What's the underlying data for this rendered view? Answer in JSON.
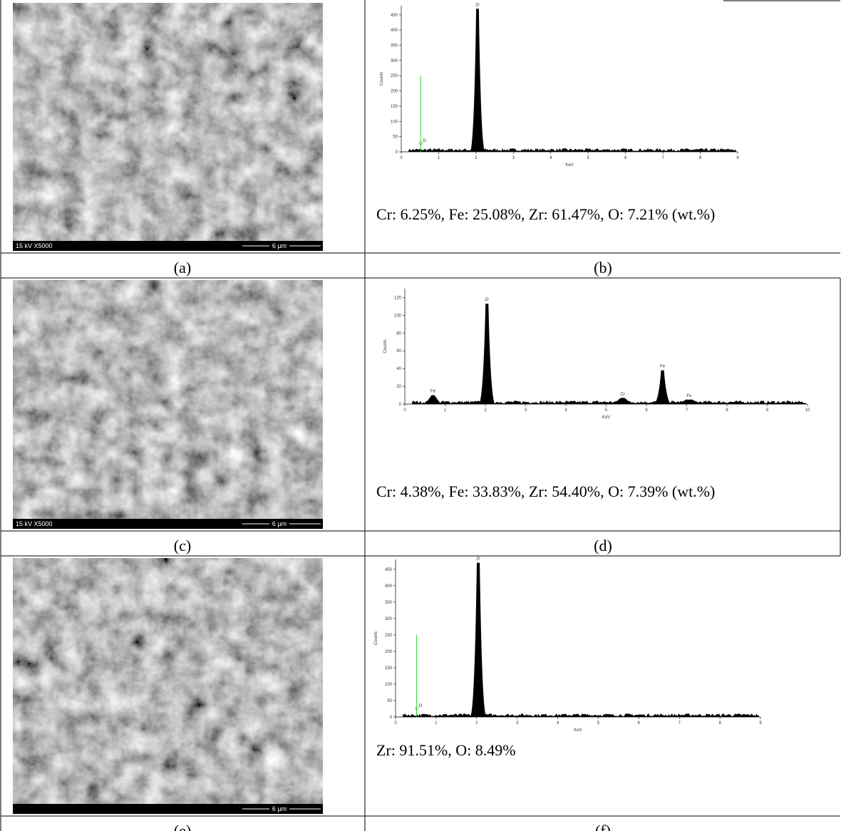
{
  "rows": [
    {
      "sem": {
        "info": "15 kV X5000",
        "scale": "6 µm"
      },
      "sem_caption": "(a)",
      "eds": {
        "y_label": "Counts",
        "x_label": "KeV",
        "xlim": [
          0,
          9
        ],
        "ylim": [
          0,
          480
        ],
        "xticks": [
          0,
          1,
          2,
          3,
          4,
          5,
          6,
          7,
          8,
          9
        ],
        "yticks": [
          0,
          50,
          100,
          150,
          200,
          250,
          300,
          350,
          400,
          450
        ],
        "peaks": [
          {
            "label": "Zr",
            "energy": 2.04,
            "counts": 470
          }
        ],
        "markers": [
          {
            "label": "O",
            "energy": 0.52,
            "counts": 250
          }
        ]
      },
      "composition": "Cr: 6.25%, Fe: 25.08%, Zr: 61.47%, O: 7.21% (wt.%)",
      "eds_caption": "(b)"
    },
    {
      "sem": {
        "info": "15 kV X5000",
        "scale": "6 µm"
      },
      "sem_caption": "(c)",
      "eds": {
        "y_label": "Counts",
        "x_label": "KeV",
        "xlim": [
          0,
          10
        ],
        "ylim": [
          0,
          130
        ],
        "xticks": [
          0,
          1,
          2,
          3,
          4,
          5,
          6,
          7,
          8,
          9,
          10
        ],
        "yticks": [
          0,
          20,
          40,
          60,
          80,
          100,
          120
        ],
        "peaks": [
          {
            "label": "Fe",
            "energy": 0.7,
            "counts": 10
          },
          {
            "label": "Zr",
            "energy": 2.04,
            "counts": 113
          },
          {
            "label": "Cr",
            "energy": 5.41,
            "counts": 7
          },
          {
            "label": "Fe",
            "energy": 6.4,
            "counts": 38
          },
          {
            "label": "Fe",
            "energy": 7.06,
            "counts": 5
          }
        ],
        "markers": []
      },
      "composition": "Cr: 4.38%, Fe: 33.83%, Zr: 54.40%, O: 7.39% (wt.%)",
      "eds_caption": "(d)"
    },
    {
      "sem": {
        "info": null,
        "scale": "6 µm"
      },
      "sem_caption": "(e)",
      "eds": {
        "y_label": "Counts",
        "x_label": "KeV",
        "xlim": [
          0,
          9
        ],
        "ylim": [
          0,
          480
        ],
        "xticks": [
          0,
          1,
          2,
          3,
          4,
          5,
          6,
          7,
          8,
          9
        ],
        "yticks": [
          0,
          50,
          100,
          150,
          200,
          250,
          300,
          350,
          400,
          450
        ],
        "peaks": [
          {
            "label": "Zr",
            "energy": 2.04,
            "counts": 470
          }
        ],
        "markers": [
          {
            "label": "O",
            "energy": 0.52,
            "counts": 250
          }
        ]
      },
      "composition": "Zr: 91.51%, O: 8.49%",
      "eds_caption": "(f)"
    }
  ]
}
